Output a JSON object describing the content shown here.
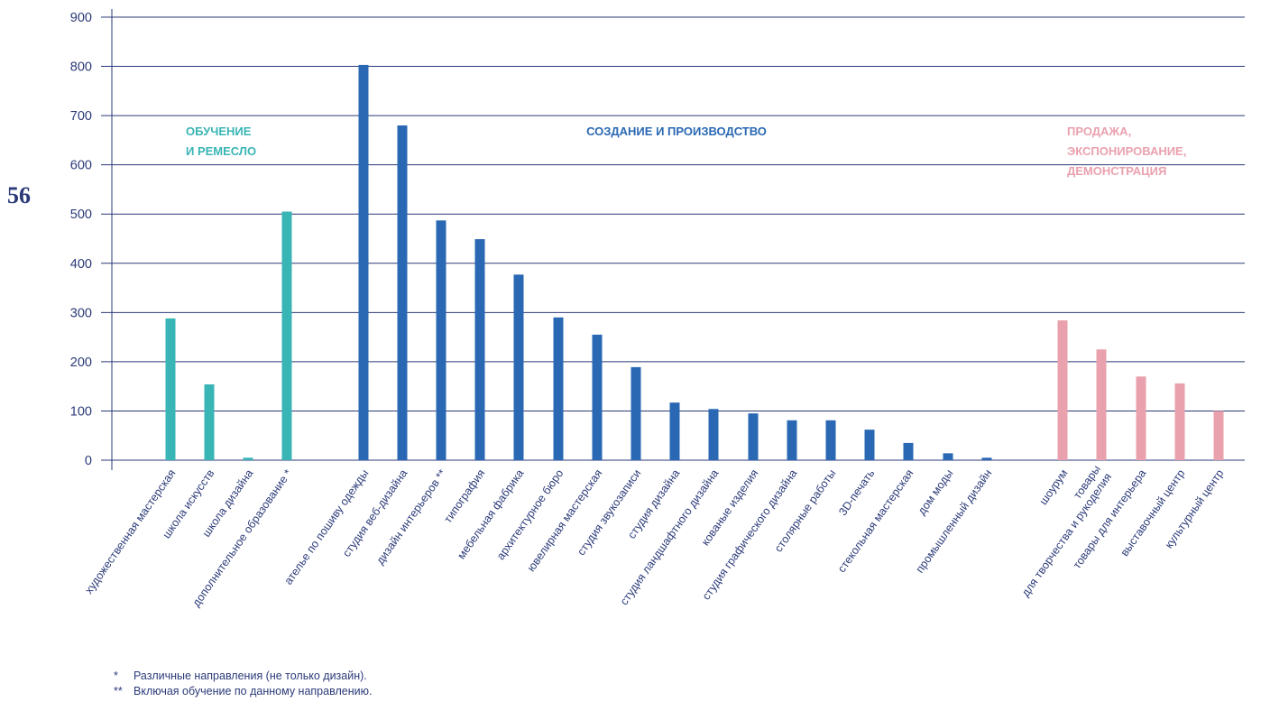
{
  "page_number": "56",
  "footnotes": [
    {
      "mark": "*",
      "text": "Различные направления (не только дизайн)."
    },
    {
      "mark": "**",
      "text": "Включая обучение по данному направлению."
    }
  ],
  "chart_data": {
    "type": "bar",
    "ylim": [
      0,
      900
    ],
    "yticks": [
      0,
      100,
      200,
      300,
      400,
      500,
      600,
      700,
      800,
      900
    ],
    "grid": true,
    "colors": {
      "axis": "#2b3a78",
      "grid": "#2b3a78"
    },
    "groups": [
      {
        "label": [
          "ОБУЧЕНИЕ",
          "И РЕМЕСЛО"
        ],
        "color": "#3ab5b5",
        "categories": [
          "художественная мастерская",
          "школа искусств",
          "школа дизайна",
          "дополнительное образование *"
        ],
        "values": [
          288,
          154,
          5,
          505
        ]
      },
      {
        "label": [
          "СОЗДАНИЕ И ПРОИЗВОДСТВО"
        ],
        "color": "#2a68b3",
        "categories": [
          "ателье по пошиву одежды",
          "студия веб-дизайна",
          "дизайн интерьеров **",
          "типография",
          "мебельная фабрика",
          "архитектурное бюро",
          "ювелирная мастерская",
          "студия звукозаписи",
          "студия дизайна",
          "студия ландшафтного дизайна",
          "кованые изделия",
          "студия графического дизайна",
          "столярные работы",
          "3D-печать",
          "стекольная мастерская",
          "дом моды",
          "промышленный дизайн"
        ],
        "values": [
          803,
          680,
          487,
          449,
          377,
          290,
          255,
          189,
          117,
          104,
          95,
          81,
          81,
          62,
          35,
          14,
          5
        ]
      },
      {
        "label": [
          "ПРОДАЖА,",
          "ЭКСПОНИРОВАНИЕ,",
          "ДЕМОНСТРАЦИЯ"
        ],
        "color": "#eaa1ae",
        "categories": [
          "шоурум",
          "товары\nдля творчества и рукоделия",
          "товары для интерьера",
          "выставочный центр",
          "культурный центр"
        ],
        "values": [
          284,
          225,
          170,
          156,
          100
        ]
      }
    ]
  }
}
